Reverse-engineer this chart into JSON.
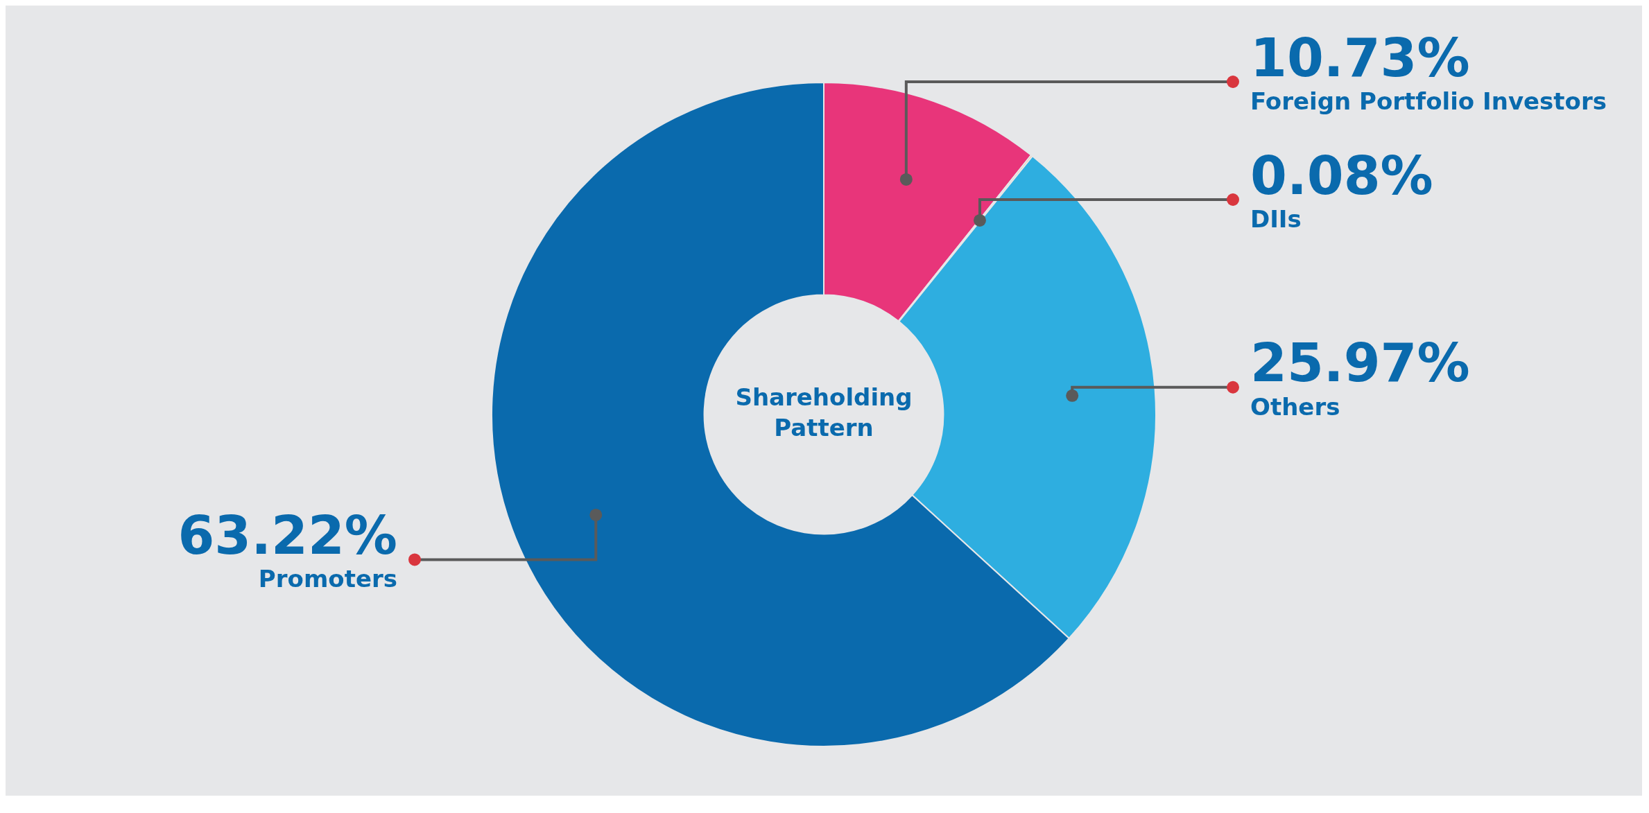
{
  "chart_data": {
    "type": "donut",
    "title": "Shareholding Pattern",
    "categories": [
      "Foreign Portfolio Investors",
      "DIIs",
      "Others",
      "Promoters"
    ],
    "values": [
      10.73,
      0.08,
      25.97,
      63.22
    ],
    "value_labels": [
      "10.73%",
      "0.08%",
      "25.97%",
      "63.22%"
    ],
    "colors": [
      "#e8357a",
      "#f39a33",
      "#2eaee0",
      "#0a6aad"
    ],
    "legend": false
  }
}
